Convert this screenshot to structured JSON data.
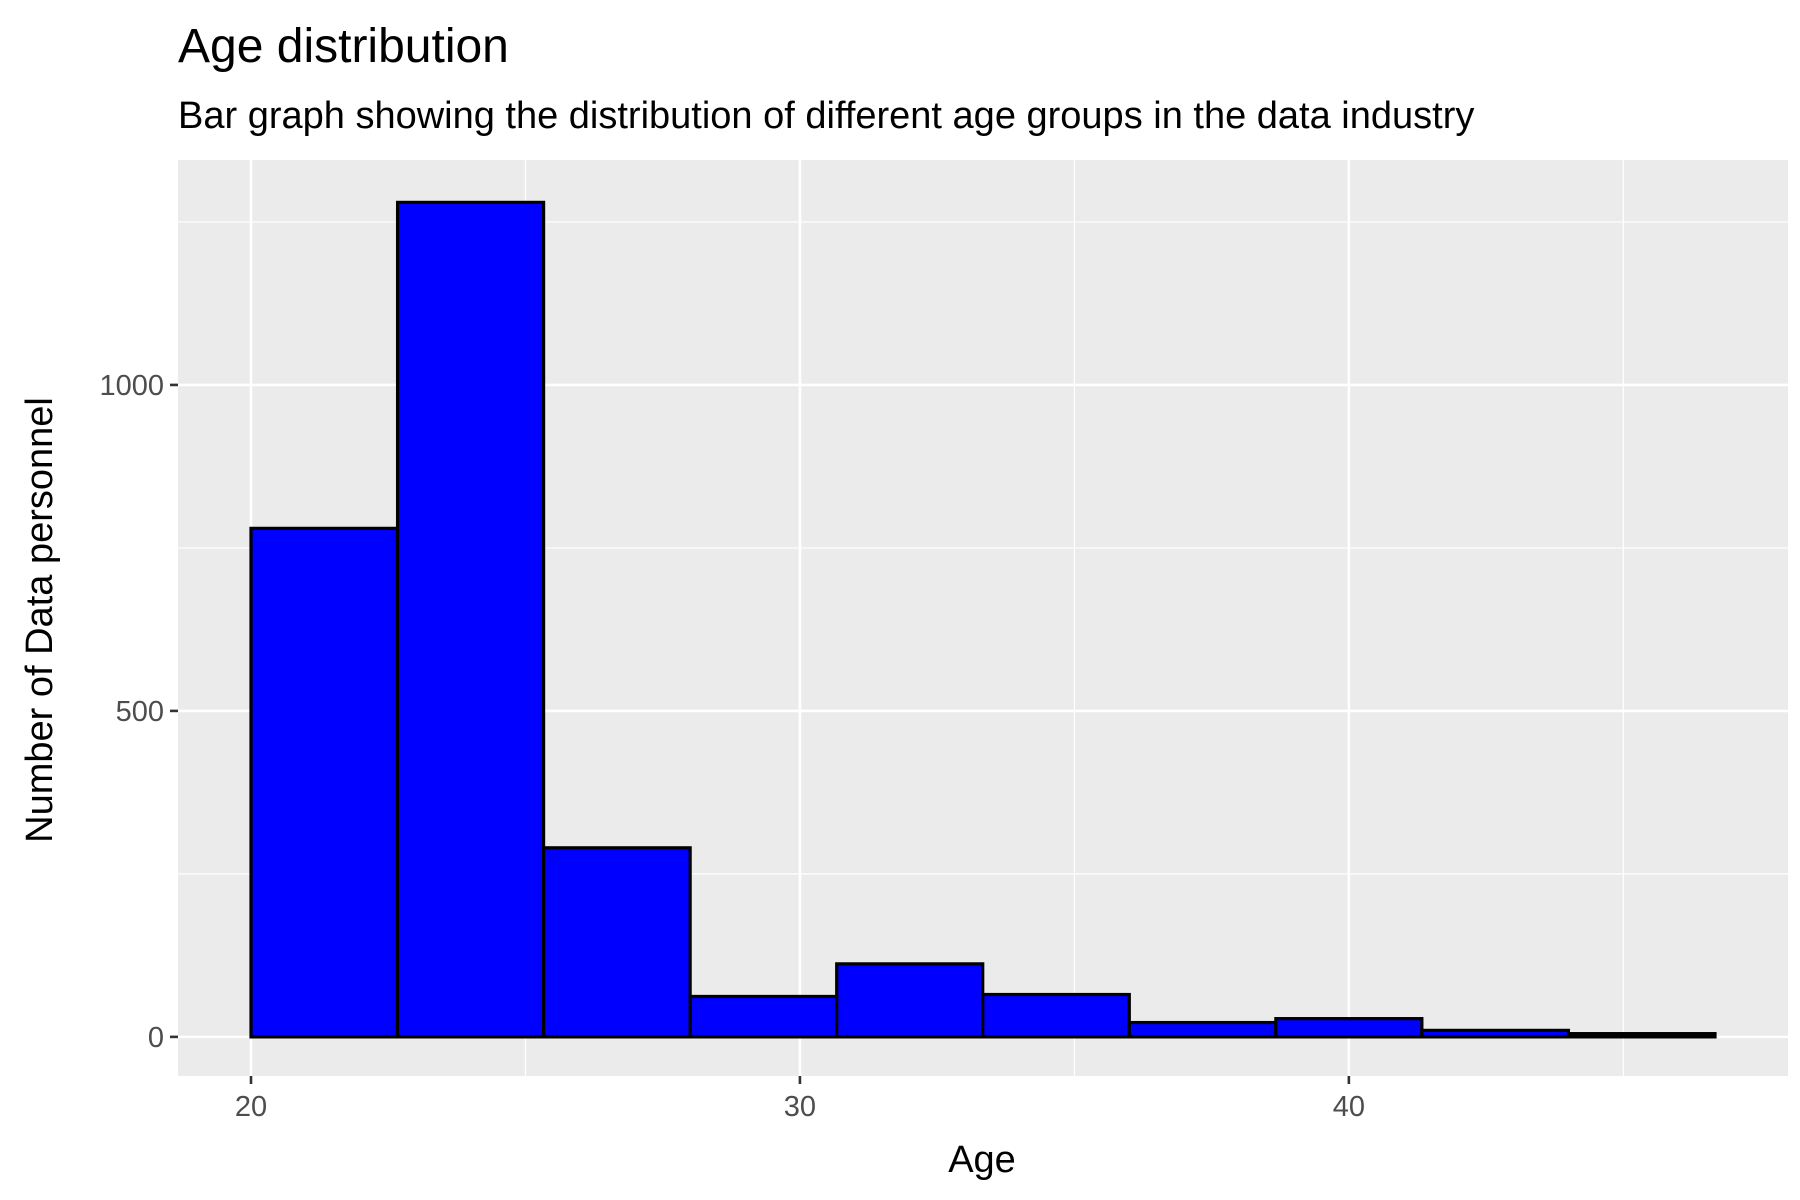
{
  "chart_data": {
    "type": "bar",
    "title": "Age distribution",
    "subtitle": "Bar graph showing the distribution of different age groups in the data industry",
    "xlabel": "Age",
    "ylabel": "Number of Data personnel",
    "bin_edges": [
      20,
      22.67,
      25.33,
      28,
      30.67,
      33.33,
      36,
      38.67,
      41.33,
      44,
      46.67
    ],
    "values": [
      780,
      1280,
      290,
      62,
      112,
      65,
      22,
      28,
      10,
      5
    ],
    "xlim": [
      18.67,
      48.0
    ],
    "ylim": [
      -60,
      1345
    ],
    "x_ticks": [
      20,
      30,
      40
    ],
    "x_tick_labels": [
      "20",
      "30",
      "40"
    ],
    "y_ticks": [
      0,
      500,
      1000
    ],
    "y_tick_labels": [
      "0",
      "500",
      "1000"
    ],
    "x_minor_ticks": [
      25,
      35,
      45
    ],
    "y_minor_ticks": [
      250,
      750,
      1250
    ],
    "grid": true,
    "bar_fill": "#0000ff",
    "bar_outline": "#000000",
    "panel_background": "#ebebeb",
    "grid_color": "#ffffff"
  }
}
